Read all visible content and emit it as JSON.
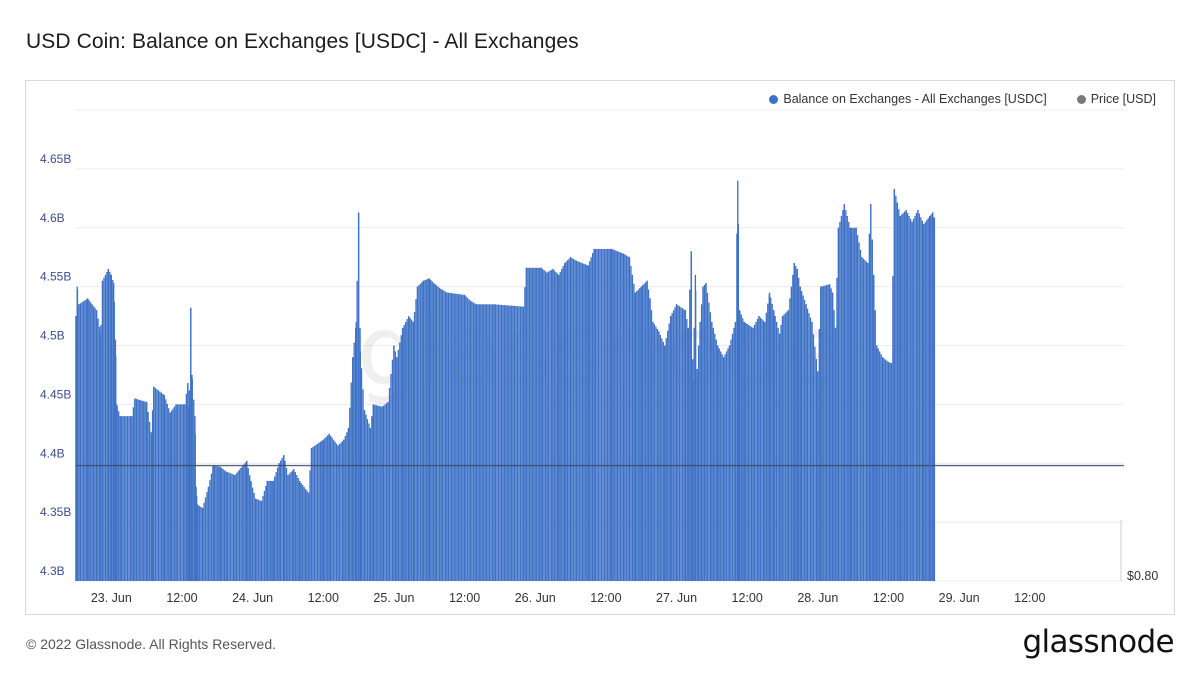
{
  "page": {
    "title": "USD Coin: Balance on Exchanges [USDC] - All Exchanges",
    "footer": "© 2022 Glassnode. All Rights Reserved.",
    "logo": "glassnode",
    "watermark": "glassnode"
  },
  "legend": {
    "balance_label": "Balance on Exchanges - All Exchanges [USDC]",
    "balance_color": "#3f72c6",
    "price_label": "Price [USD]",
    "price_color": "#7a7a7a"
  },
  "chart_data": {
    "type": "bar",
    "title": "USD Coin: Balance on Exchanges [USDC] - All Exchanges",
    "xlabel": "",
    "ylabel": "",
    "ylim": [
      4.3,
      4.7
    ],
    "y_tick_values": [
      4.3,
      4.35,
      4.4,
      4.45,
      4.5,
      4.55,
      4.6,
      4.65
    ],
    "y_tick_labels": [
      "4.3B",
      "4.35B",
      "4.4B",
      "4.45B",
      "4.5B",
      "4.55B",
      "4.6B",
      "4.65B"
    ],
    "x_range_hours": [
      -21,
      157
    ],
    "x_tick_labels": [
      "23. Jun",
      "12:00",
      "24. Jun",
      "12:00",
      "25. Jun",
      "12:00",
      "26. Jun",
      "12:00",
      "27. Jun",
      "12:00",
      "28. Jun",
      "12:00",
      "29. Jun",
      "12:00"
    ],
    "x_tick_hours": [
      -15,
      -3,
      9,
      21,
      33,
      45,
      57,
      69,
      81,
      93,
      105,
      117,
      129,
      141
    ],
    "grid": true,
    "legend_position": "top-right",
    "price_axis_label": "$0.80",
    "price_line_level": 4.398,
    "series": [
      {
        "name": "Balance on Exchanges - All Exchanges [USDC]",
        "color": "#3f72c6",
        "keypoints_hour_value": [
          [
            -21,
            4.525
          ],
          [
            -20.8,
            4.55
          ],
          [
            -20.5,
            4.535
          ],
          [
            -19,
            4.54
          ],
          [
            -17.5,
            4.53
          ],
          [
            -16.8,
            4.51
          ],
          [
            -16.5,
            4.555
          ],
          [
            -15.5,
            4.565
          ],
          [
            -15,
            4.56
          ],
          [
            -14.6,
            4.553
          ],
          [
            -14.3,
            4.505
          ],
          [
            -14.1,
            4.45
          ],
          [
            -13.5,
            4.44
          ],
          [
            -11.5,
            4.44
          ],
          [
            -11,
            4.455
          ],
          [
            -9,
            4.452
          ],
          [
            -8.2,
            4.425
          ],
          [
            -7.8,
            4.465
          ],
          [
            -6,
            4.458
          ],
          [
            -5,
            4.443
          ],
          [
            -4,
            4.45
          ],
          [
            -2.5,
            4.45
          ],
          [
            -2,
            4.468
          ],
          [
            -1.8,
            4.448
          ],
          [
            -1.5,
            4.532
          ],
          [
            -1.3,
            4.475
          ],
          [
            -0.8,
            4.44
          ],
          [
            -0.6,
            4.38
          ],
          [
            -0.4,
            4.365
          ],
          [
            0.5,
            4.362
          ],
          [
            1.5,
            4.38
          ],
          [
            2.3,
            4.398
          ],
          [
            3.5,
            4.397
          ],
          [
            4.5,
            4.393
          ],
          [
            6,
            4.39
          ],
          [
            8,
            4.402
          ],
          [
            8.7,
            4.385
          ],
          [
            9.5,
            4.37
          ],
          [
            10.5,
            4.368
          ],
          [
            11.5,
            4.385
          ],
          [
            12.5,
            4.385
          ],
          [
            13.5,
            4.4
          ],
          [
            14.3,
            4.407
          ],
          [
            15,
            4.39
          ],
          [
            16,
            4.395
          ],
          [
            17,
            4.385
          ],
          [
            18,
            4.378
          ],
          [
            18.5,
            4.375
          ],
          [
            19,
            4.413
          ],
          [
            21,
            4.42
          ],
          [
            22,
            4.425
          ],
          [
            23.5,
            4.415
          ],
          [
            24.5,
            4.42
          ],
          [
            25.3,
            4.43
          ],
          [
            26,
            4.49
          ],
          [
            26.6,
            4.52
          ],
          [
            27,
            4.613
          ],
          [
            27.3,
            4.495
          ],
          [
            28,
            4.445
          ],
          [
            29,
            4.43
          ],
          [
            29.5,
            4.45
          ],
          [
            31,
            4.448
          ],
          [
            32,
            4.452
          ],
          [
            33,
            4.5
          ],
          [
            33.5,
            4.49
          ],
          [
            34.5,
            4.515
          ],
          [
            35.5,
            4.525
          ],
          [
            36.3,
            4.52
          ],
          [
            37,
            4.55
          ],
          [
            38,
            4.555
          ],
          [
            39,
            4.557
          ],
          [
            40,
            4.552
          ],
          [
            41,
            4.548
          ],
          [
            42,
            4.545
          ],
          [
            45,
            4.543
          ],
          [
            46,
            4.538
          ],
          [
            47,
            4.535
          ],
          [
            50,
            4.535
          ],
          [
            55,
            4.533
          ],
          [
            55.5,
            4.566
          ],
          [
            58,
            4.566
          ],
          [
            59,
            4.562
          ],
          [
            60,
            4.565
          ],
          [
            61,
            4.56
          ],
          [
            62,
            4.57
          ],
          [
            63,
            4.575
          ],
          [
            64,
            4.572
          ],
          [
            66,
            4.568
          ],
          [
            67,
            4.582
          ],
          [
            70,
            4.582
          ],
          [
            72,
            4.578
          ],
          [
            73,
            4.575
          ],
          [
            74,
            4.545
          ],
          [
            75,
            4.55
          ],
          [
            76,
            4.555
          ],
          [
            76.5,
            4.54
          ],
          [
            77,
            4.52
          ],
          [
            78,
            4.512
          ],
          [
            79,
            4.5
          ],
          [
            80,
            4.525
          ],
          [
            81,
            4.535
          ],
          [
            82.5,
            4.53
          ],
          [
            83,
            4.515
          ],
          [
            83.5,
            4.58
          ],
          [
            83.8,
            4.47
          ],
          [
            84.2,
            4.56
          ],
          [
            84.5,
            4.48
          ],
          [
            85,
            4.52
          ],
          [
            85.5,
            4.55
          ],
          [
            86,
            4.553
          ],
          [
            87,
            4.52
          ],
          [
            88,
            4.5
          ],
          [
            89,
            4.49
          ],
          [
            90,
            4.5
          ],
          [
            91,
            4.52
          ],
          [
            91.4,
            4.64
          ],
          [
            91.7,
            4.53
          ],
          [
            92.5,
            4.52
          ],
          [
            94,
            4.515
          ],
          [
            95,
            4.525
          ],
          [
            96,
            4.52
          ],
          [
            96.8,
            4.545
          ],
          [
            97.5,
            4.53
          ],
          [
            98.5,
            4.51
          ],
          [
            99,
            4.525
          ],
          [
            100,
            4.53
          ],
          [
            101,
            4.57
          ],
          [
            101.5,
            4.565
          ],
          [
            102,
            4.55
          ],
          [
            103,
            4.535
          ],
          [
            104,
            4.52
          ],
          [
            105,
            4.478
          ],
          [
            105.5,
            4.55
          ],
          [
            107,
            4.552
          ],
          [
            107.5,
            4.545
          ],
          [
            108,
            4.515
          ],
          [
            108.5,
            4.6
          ],
          [
            109.5,
            4.62
          ],
          [
            110.5,
            4.6
          ],
          [
            111.5,
            4.6
          ],
          [
            112.5,
            4.575
          ],
          [
            113.5,
            4.57
          ],
          [
            114,
            4.62
          ],
          [
            114.5,
            4.56
          ],
          [
            115,
            4.5
          ],
          [
            116,
            4.49
          ],
          [
            117,
            4.486
          ],
          [
            117.5,
            4.485
          ],
          [
            118,
            4.633
          ],
          [
            119,
            4.61
          ],
          [
            120,
            4.615
          ],
          [
            121,
            4.605
          ],
          [
            122,
            4.615
          ],
          [
            123,
            4.603
          ],
          [
            124,
            4.61
          ],
          [
            124.5,
            4.613
          ],
          [
            124.8,
            4.608
          ]
        ]
      }
    ]
  }
}
